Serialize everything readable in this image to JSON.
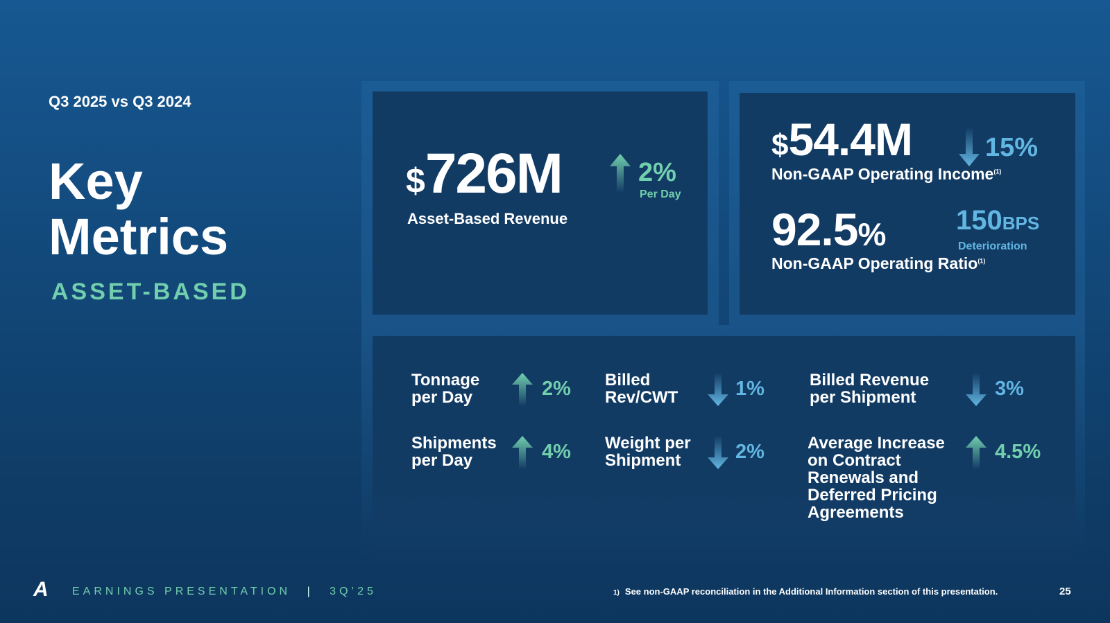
{
  "header": {
    "comparison": "Q3 2025 vs Q3 2024",
    "title_line1": "Key",
    "title_line2": "Metrics",
    "subtitle": "ASSET-BASED"
  },
  "revenue": {
    "currency": "$",
    "value": "726M",
    "change": "2%",
    "change_note": "Per Day",
    "direction": "up",
    "label": "Asset-Based Revenue"
  },
  "operating_income": {
    "currency": "$",
    "value": "54.4M",
    "change": "15%",
    "direction": "down",
    "label": "Non-GAAP Operating Income",
    "footnote": "(1)"
  },
  "operating_ratio": {
    "value": "92.5",
    "unit": "%",
    "change_value": "150",
    "change_unit": "BPS",
    "change_note": "Deterioration",
    "label": "Non-GAAP Operating Ratio",
    "footnote": "(1)"
  },
  "metrics": [
    {
      "label_line1": "Tonnage",
      "label_line2": "per Day",
      "change": "2%",
      "direction": "up"
    },
    {
      "label_line1": "Billed",
      "label_line2": "Rev/CWT",
      "change": "1%",
      "direction": "down"
    },
    {
      "label_line1": "Billed Revenue",
      "label_line2": "per Shipment",
      "change": "3%",
      "direction": "down"
    },
    {
      "label_line1": "Shipments",
      "label_line2": "per Day",
      "change": "4%",
      "direction": "up"
    },
    {
      "label_line1": "Weight per",
      "label_line2": "Shipment",
      "change": "2%",
      "direction": "down"
    },
    {
      "label_lines": [
        "Average Increase",
        "on Contract",
        "Renewals and",
        "Deferred Pricing",
        "Agreements"
      ],
      "change": "4.5%",
      "direction": "up"
    }
  ],
  "footer": {
    "logo": "A",
    "presentation": "EARNINGS PRESENTATION",
    "separator": "|",
    "period": "3Q’25",
    "footnote_marker": "1)",
    "footnote": "See non-GAAP reconciliation in the Additional Information section of this presentation.",
    "page_number": "25"
  },
  "colors": {
    "up": "#72cfae",
    "down": "#62b6e2",
    "panel": "#123b64"
  }
}
